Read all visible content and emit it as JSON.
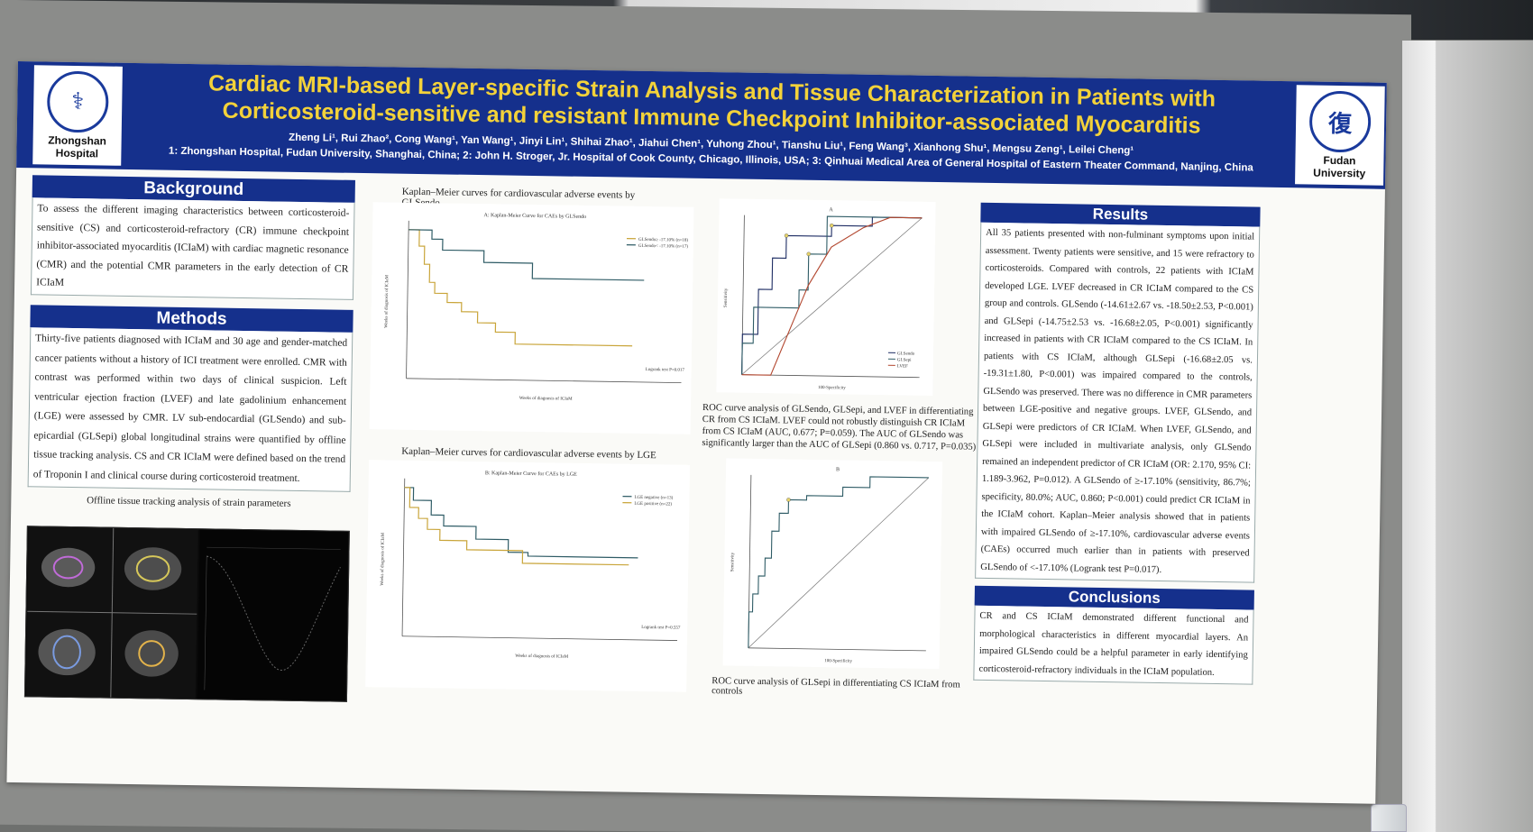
{
  "poster": {
    "title_line1": "Cardiac MRI-based Layer-specific Strain Analysis and Tissue Characterization in Patients with",
    "title_line2": "Corticosteroid-sensitive and resistant Immune Checkpoint Inhibitor-associated Myocarditis",
    "authors": "Zheng Li¹, Rui Zhao², Cong Wang¹, Yan Wang¹, Jinyi Lin¹, Shihai Zhao¹, Jiahui Chen¹, Yuhong Zhou¹, Tianshu Liu¹, Feng Wang³, Xianhong Shu¹, Mengsu Zeng¹, Leilei Cheng¹",
    "affiliations": "1: Zhongshan Hospital, Fudan University, Shanghai, China; 2: John H. Stroger, Jr. Hospital of Cook County, Chicago, Illinois, USA; 3: Qinhuai Medical Area of General Hospital of Eastern Theater Command, Nanjing, China",
    "logo_left_line1": "Zhongshan",
    "logo_left_line2": "Hospital",
    "logo_right_line1": "Fudan",
    "logo_right_line2": "University"
  },
  "background": {
    "heading": "Background",
    "text": "To assess the different imaging characteristics between corticosteroid-sensitive (CS) and corticosteroid-refractory (CR) immune checkpoint inhibitor-associated myocarditis (ICIaM) with cardiac magnetic resonance (CMR) and the potential CMR parameters in the early detection of CR ICIaM"
  },
  "methods": {
    "heading": "Methods",
    "text": "Thirty-five patients diagnosed with ICIaM and 30 age and gender-matched cancer patients without a history of ICI treatment were enrolled. CMR with contrast was performed within two days of clinical suspicion. Left ventricular ejection fraction (LVEF) and late gadolinium enhancement (LGE) were assessed by CMR. LV sub-endocardial (GLSendo) and sub-epicardial (GLSepi) global longitudinal strains were quantified by offline tissue tracking analysis. CS and CR ICIaM were defined based on the trend of Troponin I and clinical course during corticosteroid treatment.",
    "figure_caption": "Offline tissue tracking analysis of strain parameters"
  },
  "figures": {
    "km1_caption": "Kaplan–Meier curves for cardiovascular adverse events by GLSendo",
    "km1_title": "A: Kaplan-Meier Curve for CAEs by GLSendo",
    "km1_legend1": "GLSendo≥ -17.10% (n=18)",
    "km1_legend2": "GLSendo< -17.10% (n=17)",
    "km1_logrank": "Logrank test P=0.017",
    "km2_caption": "Kaplan–Meier curves for cardiovascular adverse events by LGE",
    "km2_title": "B: Kaplan-Meier Curve for CAEs by LGE",
    "km2_legend1": "LGE negative (n=13)",
    "km2_legend2": "LGE positive (n=22)",
    "km2_logrank": "Logrank test P=0.557",
    "km_ylabel": "Weeks of diagnosis of ICIaM",
    "km_xlabel": "Weeks of diagnosis of ICIaM",
    "roc1_caption": "ROC curve analysis of GLSendo, GLSepi, and LVEF in differentiating CR from CS ICIaM. LVEF could not robustly distinguish CR ICIaM from CS ICIaM (AUC, 0.677; P=0.059). The AUC of GLSendo was significantly larger than the AUC of GLSepi (0.860 vs. 0.717, P=0.035)",
    "roc1_panel": "A",
    "roc1_legend": [
      "GLSendo",
      "GLSepi",
      "LVEF"
    ],
    "roc2_caption": "ROC curve analysis of GLSepi in differentiating CS ICIaM from controls",
    "roc2_panel": "B",
    "roc_ylabel": "Sensitivity",
    "roc_xlabel": "100-Specificity"
  },
  "results": {
    "heading": "Results",
    "text": "All 35 patients presented with non-fulminant symptoms upon initial assessment. Twenty patients were sensitive, and 15 were refractory to corticosteroids. Compared with controls, 22 patients with ICIaM developed LGE. LVEF decreased in CR ICIaM compared to the CS group and controls. GLSendo (-14.61±2.67 vs. -18.50±2.53, P<0.001) and GLSepi (-14.75±2.53 vs. -16.68±2.05, P<0.001) significantly increased in patients with CR ICIaM compared to the CS ICIaM. In patients with CS ICIaM, although GLSepi (-16.68±2.05 vs. -19.31±1.80, P<0.001) was impaired compared to the controls, GLSendo was preserved. There was no difference in CMR parameters between LGE-positive and negative groups. LVEF, GLSendo, and GLSepi were predictors of CR ICIaM. When LVEF, GLSendo, and GLSepi were included in multivariate analysis, only GLSendo remained an independent predictor of CR ICIaM (OR: 2.170, 95% CI: 1.189-3.962, P=0.012). A GLSendo of ≥-17.10% (sensitivity, 86.7%; specificity, 80.0%; AUC, 0.860; P<0.001) could predict CR ICIaM in the ICIaM cohort. Kaplan–Meier analysis showed that in patients with impaired GLSendo of ≥-17.10%, cardiovascular adverse events (CAEs) occurred much earlier than in patients with preserved GLSendo of <-17.10% (Logrank test P=0.017)."
  },
  "conclusions": {
    "heading": "Conclusions",
    "text": "CR and CS ICIaM demonstrated different functional and morphological characteristics in different myocardial layers. An impaired GLSendo could be a helpful parameter in early identifying corticosteroid-refractory individuals in the ICIaM population."
  },
  "colors": {
    "header_blue": "#15308c",
    "title_yellow": "#f3d23a",
    "curve_gold": "#c9a53a",
    "curve_teal": "#2f5c66",
    "curve_red": "#b2462e",
    "curve_navy": "#1d2c63"
  }
}
